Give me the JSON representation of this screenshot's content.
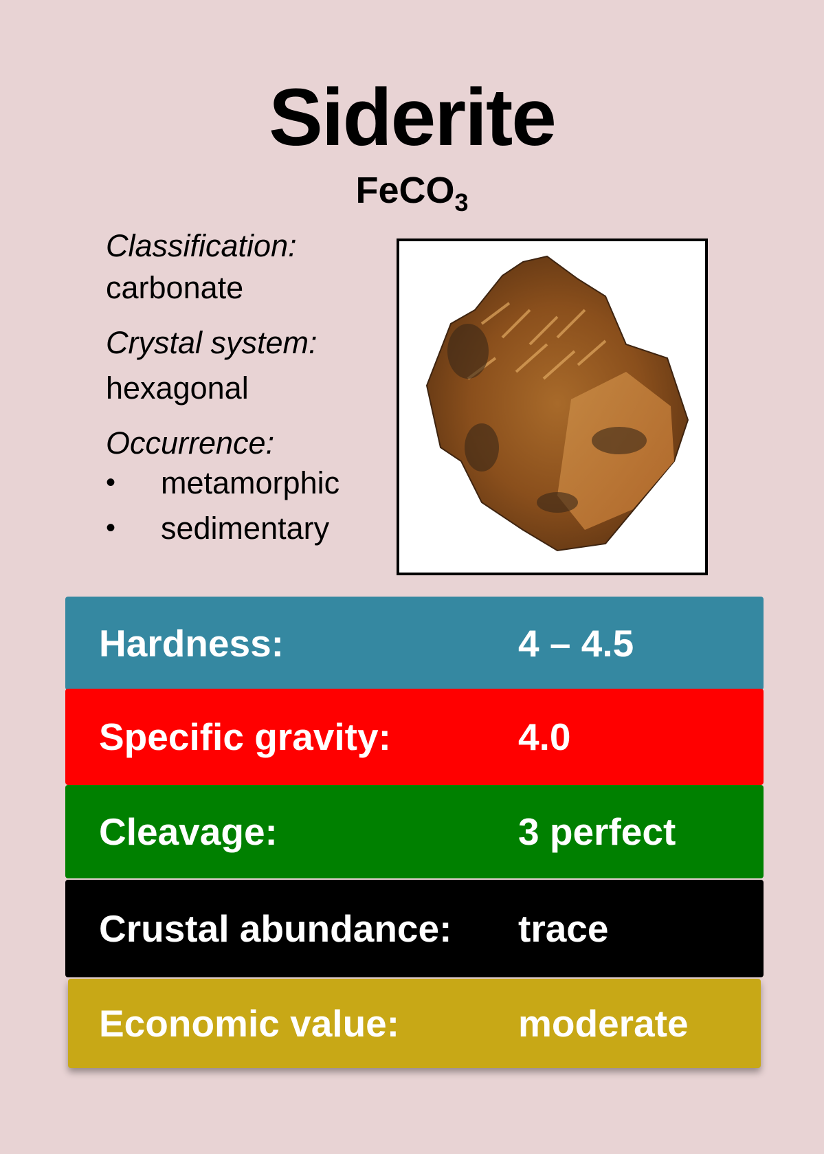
{
  "title": "Siderite",
  "formula": {
    "base": "FeCO",
    "subscript": "3"
  },
  "properties": {
    "classification_label": "Classification:",
    "classification_value": "carbonate",
    "crystal_label": "Crystal system:",
    "crystal_value": "hexagonal",
    "occurrence_label": "Occurrence:",
    "occurrence_items": [
      "metamorphic",
      "sedimentary"
    ],
    "bullet": "•"
  },
  "photo_icon": "mineral-specimen-photo",
  "stats": [
    {
      "label": "Hardness:",
      "value": "4 – 4.5",
      "color": "#3588a1"
    },
    {
      "label": "Specific gravity:",
      "value": "4.0",
      "color": "#ff0000"
    },
    {
      "label": "Cleavage:",
      "value": "3 perfect",
      "color": "#008000"
    },
    {
      "label": "Crustal abundance:",
      "value": "trace",
      "color": "#000000"
    },
    {
      "label": "Economic value:",
      "value": "moderate",
      "color": "#c8a816"
    }
  ],
  "background": "#e8d3d4"
}
